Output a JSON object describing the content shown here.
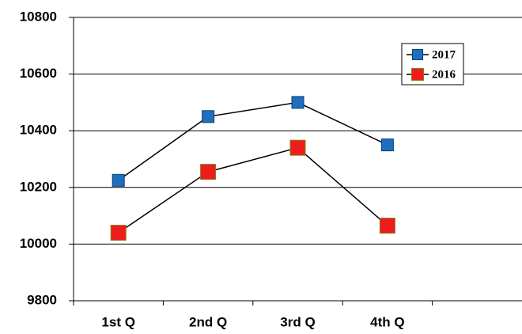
{
  "chart_data": {
    "type": "line",
    "categories": [
      "1st Q",
      "2nd Q",
      "3rd Q",
      "4th Q",
      null
    ],
    "series": [
      {
        "name": "2017",
        "color": "#1f6fbf",
        "values": [
          10225,
          10450,
          10500,
          10350,
          null
        ]
      },
      {
        "name": "2016",
        "color": "#ee1c1c",
        "values": [
          10040,
          10255,
          10340,
          10065,
          null
        ]
      }
    ],
    "ylim": [
      9800,
      10800
    ],
    "yticks": [
      9800,
      10000,
      10200,
      10400,
      10600,
      10800
    ],
    "grid": true,
    "legend": "upper right"
  }
}
